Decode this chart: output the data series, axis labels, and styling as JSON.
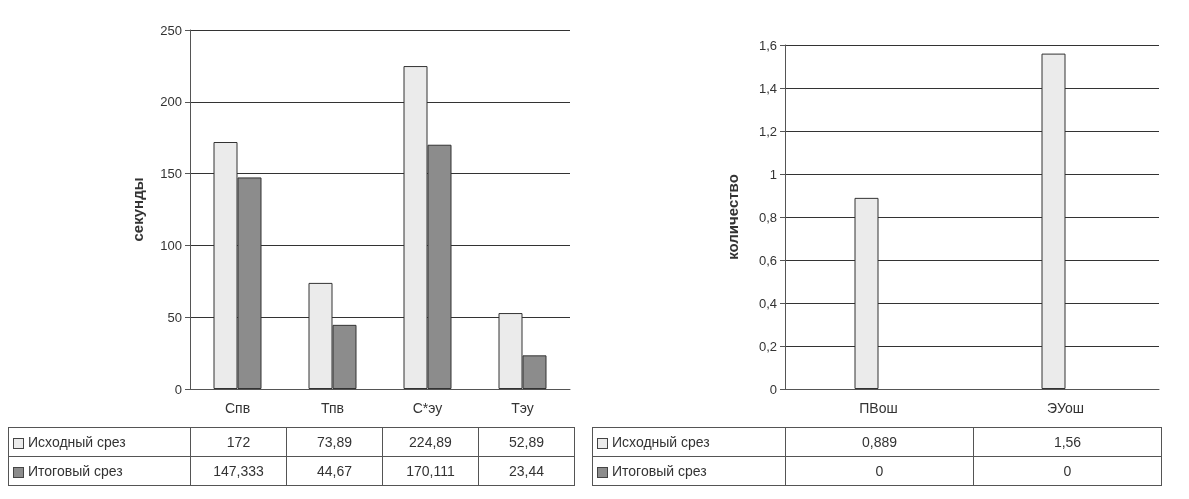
{
  "chart_data": [
    {
      "type": "bar",
      "ylabel": "секунды",
      "categories": [
        "Спв",
        "Тпв",
        "С*эу",
        "Тэу"
      ],
      "ylim": [
        0,
        250
      ],
      "yticks": [
        0,
        50,
        100,
        150,
        200,
        250
      ],
      "grid": "y",
      "legend": "bottom left",
      "series": [
        {
          "name": "Исходный срез",
          "color": "#ebebeb",
          "values": [
            172,
            73.89,
            224.89,
            52.89
          ],
          "value_labels": [
            "172",
            "73,89",
            "224,89",
            "52,89"
          ]
        },
        {
          "name": "Итоговый срез",
          "color": "#8c8c8c",
          "values": [
            147.333,
            44.67,
            170.111,
            23.44
          ],
          "value_labels": [
            "147,333",
            "44,67",
            "170,111",
            "23,44"
          ]
        }
      ]
    },
    {
      "type": "bar",
      "ylabel": "количество",
      "categories": [
        "ПВош",
        "ЭУош"
      ],
      "ylim": [
        0,
        1.6
      ],
      "yticks": [
        0,
        {
          "value": 0.2,
          "label": "0,2"
        },
        {
          "value": 0.4,
          "label": "0,4"
        },
        {
          "value": 0.6,
          "label": "0,6"
        },
        {
          "value": 0.8,
          "label": "0,8"
        },
        1,
        {
          "value": 1.2,
          "label": "1,2"
        },
        {
          "value": 1.4,
          "label": "1,4"
        },
        {
          "value": 1.6,
          "label": "1,6"
        }
      ],
      "grid": "y",
      "legend": "bottom left",
      "series": [
        {
          "name": "Исходный срез",
          "color": "#ebebeb",
          "values": [
            0.889,
            1.56
          ],
          "value_labels": [
            "0,889",
            "1,56"
          ]
        },
        {
          "name": "Итоговый срез",
          "color": "#8c8c8c",
          "values": [
            0,
            0
          ],
          "value_labels": [
            "0",
            "0"
          ]
        }
      ]
    }
  ]
}
